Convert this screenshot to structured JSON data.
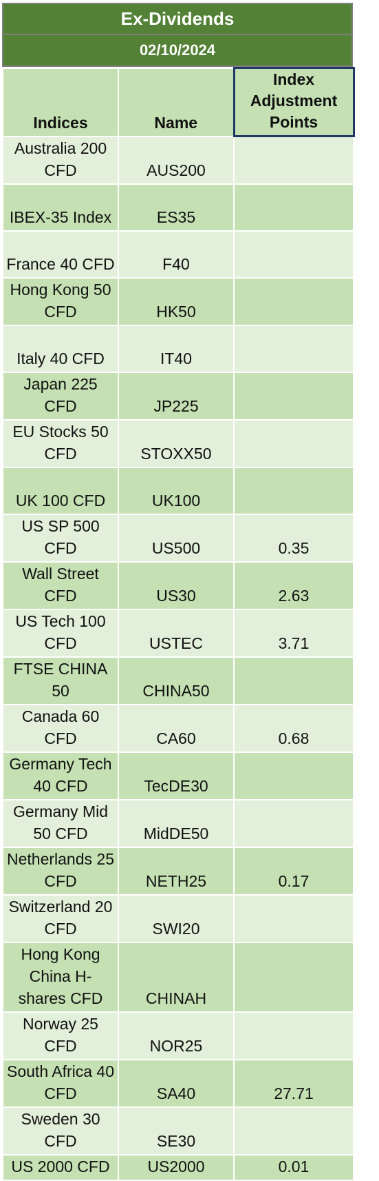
{
  "header": {
    "title": "Ex-Dividends",
    "date": "02/10/2024"
  },
  "columns": {
    "indices": "Indices",
    "name": "Name",
    "adjustment_line1": "Index",
    "adjustment_line2": "Adjustment",
    "adjustment_line3": "Points"
  },
  "rows": [
    {
      "index": "Australia 200 CFD",
      "name": "AUS200",
      "points": "",
      "lines": 2
    },
    {
      "index": "IBEX-35 Index",
      "name": "ES35",
      "points": "",
      "lines": 2
    },
    {
      "index": "France 40 CFD",
      "name": "F40",
      "points": "",
      "lines": 2
    },
    {
      "index": "Hong Kong 50 CFD",
      "name": "HK50",
      "points": "",
      "lines": 2
    },
    {
      "index": "Italy 40 CFD",
      "name": "IT40",
      "points": "",
      "lines": 2
    },
    {
      "index": "Japan 225 CFD",
      "name": "JP225",
      "points": "",
      "lines": 2
    },
    {
      "index": "EU Stocks 50 CFD",
      "name": "STOXX50",
      "points": "",
      "lines": 2
    },
    {
      "index": "UK 100 CFD",
      "name": "UK100",
      "points": "",
      "lines": 2
    },
    {
      "index": "US SP 500 CFD",
      "name": "US500",
      "points": "0.35",
      "lines": 1
    },
    {
      "index": "Wall Street CFD",
      "name": "US30",
      "points": "2.63",
      "lines": 2
    },
    {
      "index": "US Tech 100 CFD",
      "name": "USTEC",
      "points": "3.71",
      "lines": 2
    },
    {
      "index": "FTSE CHINA 50",
      "name": "CHINA50",
      "points": "",
      "lines": 2
    },
    {
      "index": "Canada 60 CFD",
      "name": "CA60",
      "points": "0.68",
      "lines": 1
    },
    {
      "index": "Germany Tech 40 CFD",
      "name": "TecDE30",
      "points": "",
      "lines": 2
    },
    {
      "index": "Germany Mid 50 CFD",
      "name": "MidDE50",
      "points": "",
      "lines": 2
    },
    {
      "index": "Netherlands 25 CFD",
      "name": "NETH25",
      "points": "0.17",
      "lines": 2
    },
    {
      "index": "Switzerland 20 CFD",
      "name": "SWI20",
      "points": "",
      "lines": 2
    },
    {
      "index": "Hong Kong China H-shares CFD",
      "name": "CHINAH",
      "points": "",
      "lines": 3
    },
    {
      "index": "Norway 25 CFD",
      "name": "NOR25",
      "points": "",
      "lines": 2
    },
    {
      "index": "South Africa 40 CFD",
      "name": "SA40",
      "points": "27.71",
      "lines": 2
    },
    {
      "index": "Sweden 30 CFD",
      "name": "SE30",
      "points": "",
      "lines": 2
    },
    {
      "index": "US 2000 CFD",
      "name": "US2000",
      "points": "0.01",
      "lines": 1
    }
  ],
  "colors": {
    "banner": "#538135",
    "row_light": "#e2efda",
    "row_dark": "#c5e0b3",
    "header_border": "#1f3864"
  }
}
